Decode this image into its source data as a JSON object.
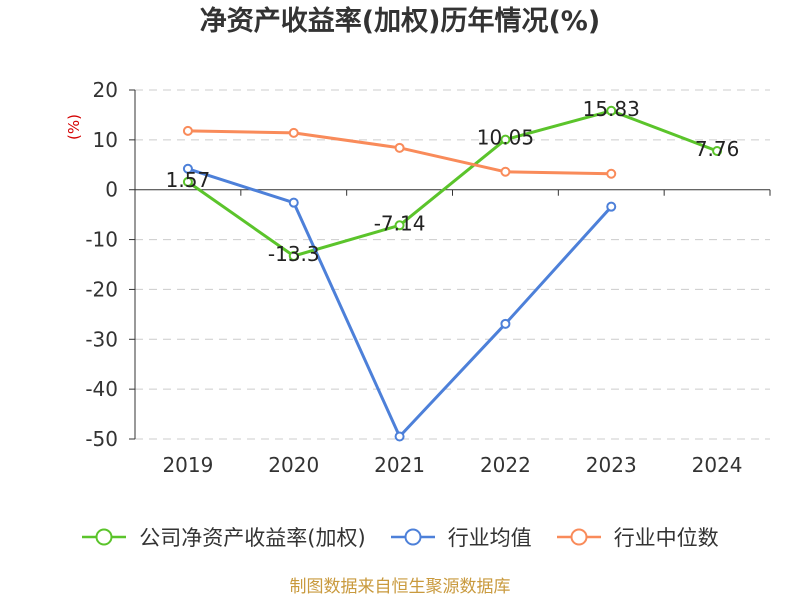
{
  "chart_data": {
    "type": "line",
    "title": "净资产收益率(加权)历年情况(%)",
    "ylabel": "(%)",
    "categories": [
      "2019",
      "2020",
      "2021",
      "2022",
      "2023",
      "2024"
    ],
    "ylim": [
      -50,
      20
    ],
    "yticks": [
      20,
      10,
      0,
      -10,
      -20,
      -30,
      -40,
      -50
    ],
    "grid": true,
    "legend": "bottom",
    "series": [
      {
        "name": "公司净资产收益率(加权)",
        "color": "#5bc42b",
        "data_labels": true,
        "values": [
          1.57,
          -13.3,
          -7.14,
          10.05,
          15.83,
          7.76
        ]
      },
      {
        "name": "行业均值",
        "color": "#4d80d9",
        "data_labels": false,
        "values": [
          4.2,
          -2.6,
          -49.5,
          -26.9,
          -3.4,
          null
        ]
      },
      {
        "name": "行业中位数",
        "color": "#f98b5a",
        "data_labels": false,
        "values": [
          11.8,
          11.4,
          8.4,
          3.6,
          3.2,
          null
        ]
      }
    ]
  },
  "source_note": "制图数据来自恒生聚源数据库",
  "colors": {
    "ylabel": "#d40000",
    "axis": "#333333",
    "grid": "#cccccc",
    "data_label": "#222222",
    "source_note": "#c99a3e"
  }
}
